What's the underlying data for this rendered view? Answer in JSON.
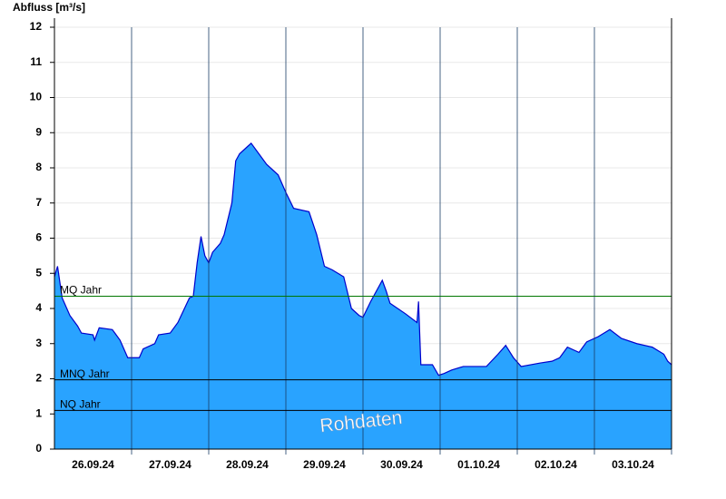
{
  "chart_data": {
    "type": "area",
    "ylabel": "Abfluss [m³/s]",
    "watermark": "Rohdaten",
    "x": [
      0,
      0.04,
      0.1,
      0.2,
      0.3,
      0.35,
      0.5,
      0.52,
      0.58,
      0.75,
      0.85,
      0.95,
      1.1,
      1.15,
      1.3,
      1.35,
      1.5,
      1.6,
      1.75,
      1.8,
      1.85,
      1.9,
      1.95,
      2.0,
      2.05,
      2.15,
      2.2,
      2.3,
      2.35,
      2.4,
      2.5,
      2.55,
      2.65,
      2.75,
      2.9,
      3.0,
      3.1,
      3.3,
      3.4,
      3.5,
      3.6,
      3.75,
      3.85,
      3.95,
      4.0,
      4.1,
      4.25,
      4.3,
      4.35,
      4.55,
      4.7,
      4.72,
      4.75,
      4.9,
      4.98,
      5.05,
      5.15,
      5.3,
      5.6,
      5.75,
      5.85,
      5.95,
      6.05,
      6.3,
      6.45,
      6.55,
      6.65,
      6.8,
      6.9,
      7.05,
      7.2,
      7.35,
      7.55,
      7.75,
      7.9,
      7.95,
      8.0
    ],
    "series": [
      {
        "name": "Abfluss",
        "color": "#29a3ff",
        "line_color": "#0000cc",
        "values": [
          4.9,
          5.2,
          4.3,
          3.8,
          3.5,
          3.3,
          3.25,
          3.1,
          3.45,
          3.4,
          3.1,
          2.6,
          2.6,
          2.85,
          3.0,
          3.25,
          3.3,
          3.6,
          4.3,
          4.35,
          5.3,
          6.05,
          5.5,
          5.3,
          5.6,
          5.85,
          6.1,
          7.0,
          8.2,
          8.4,
          8.6,
          8.7,
          8.4,
          8.1,
          7.8,
          7.3,
          6.85,
          6.75,
          6.1,
          5.2,
          5.1,
          4.9,
          4.0,
          3.8,
          3.75,
          4.2,
          4.8,
          4.5,
          4.15,
          3.85,
          3.6,
          4.2,
          2.4,
          2.4,
          2.1,
          2.15,
          2.25,
          2.35,
          2.35,
          2.7,
          2.95,
          2.6,
          2.35,
          2.45,
          2.5,
          2.6,
          2.9,
          2.75,
          3.05,
          3.2,
          3.4,
          3.15,
          3.0,
          2.9,
          2.7,
          2.5,
          2.4
        ]
      }
    ],
    "reference_lines": [
      {
        "label": "MQ Jahr",
        "value": 4.35,
        "color": "#007700"
      },
      {
        "label": "MNQ Jahr",
        "value": 1.97,
        "color": "#000000"
      },
      {
        "label": "NQ Jahr",
        "value": 1.1,
        "color": "#000000"
      }
    ],
    "xlim": [
      0,
      8
    ],
    "xticks": [
      {
        "value": 0.5,
        "label": "26.09.24"
      },
      {
        "value": 1.5,
        "label": "27.09.24"
      },
      {
        "value": 2.5,
        "label": "28.09.24"
      },
      {
        "value": 3.5,
        "label": "29.09.24"
      },
      {
        "value": 4.5,
        "label": "30.09.24"
      },
      {
        "value": 5.5,
        "label": "01.10.24"
      },
      {
        "value": 6.5,
        "label": "02.10.24"
      },
      {
        "value": 7.5,
        "label": "03.10.24"
      }
    ],
    "ylim": [
      0,
      12
    ],
    "yticks": [
      0,
      1,
      2,
      3,
      4,
      5,
      6,
      7,
      8,
      9,
      10,
      11,
      12
    ],
    "grid": true
  }
}
